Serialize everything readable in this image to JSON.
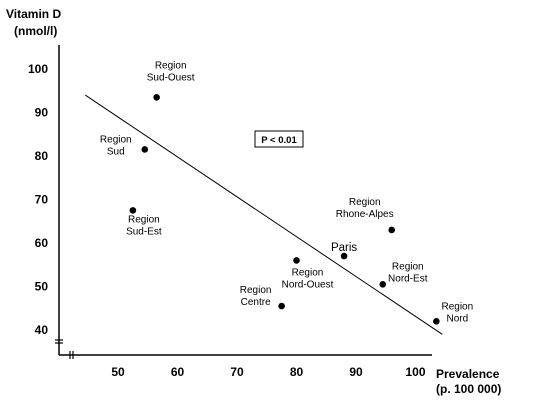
{
  "chart_data": {
    "type": "scatter",
    "ylabel": [
      "Vitamin D",
      "(nmol/l)"
    ],
    "xlabel": [
      "Prevalence",
      "(p. 100 000)"
    ],
    "annotation": "P < 0.01",
    "x_ticks": [
      "50",
      "60",
      "70",
      "80",
      "90",
      "100"
    ],
    "y_ticks": [
      "40",
      "50",
      "60",
      "70",
      "80",
      "90",
      "100"
    ],
    "xlim": [
      40,
      105
    ],
    "ylim": [
      36,
      105
    ],
    "axis_breaks": true,
    "grid": false,
    "points": [
      {
        "label": [
          "Region",
          "Sud-Ouest"
        ],
        "x": 56.5,
        "y": 93.5
      },
      {
        "label": [
          "Region",
          "Sud"
        ],
        "x": 54.5,
        "y": 81.5
      },
      {
        "label": [
          "Region",
          "Sud-Est"
        ],
        "x": 52.5,
        "y": 67.5
      },
      {
        "label": [
          "Region",
          "Nord-Ouest"
        ],
        "x": 80,
        "y": 56
      },
      {
        "label": [
          "Region",
          "Centre"
        ],
        "x": 77.5,
        "y": 45.5
      },
      {
        "label": [
          "Paris"
        ],
        "x": 88,
        "y": 57
      },
      {
        "label": [
          "Region",
          "Rhone-Alpes"
        ],
        "x": 96,
        "y": 63
      },
      {
        "label": [
          "Region",
          "Nord-Est"
        ],
        "x": 94.5,
        "y": 50.5
      },
      {
        "label": [
          "Region",
          "Nord"
        ],
        "x": 103.5,
        "y": 42
      }
    ],
    "trendline": {
      "x": [
        44.5,
        104.5
      ],
      "y": [
        94,
        39
      ]
    }
  }
}
